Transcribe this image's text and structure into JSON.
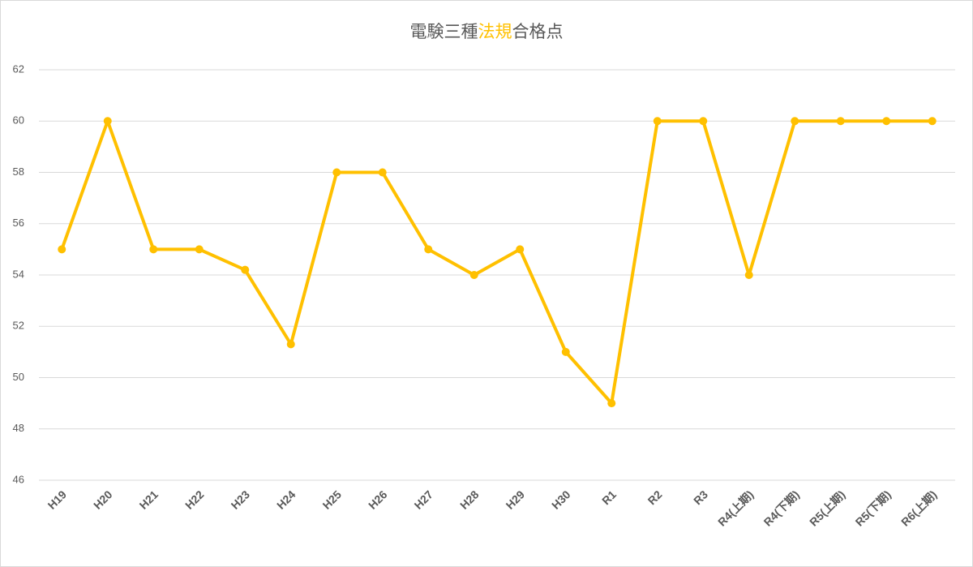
{
  "chart_data": {
    "type": "line",
    "title": [
      {
        "text": "電験三種"
      },
      {
        "text": "法規",
        "color": "#ffc000"
      },
      {
        "text": "合格点"
      }
    ],
    "categories": [
      "H19",
      "H20",
      "H21",
      "H22",
      "H23",
      "H24",
      "H25",
      "H26",
      "H27",
      "H28",
      "H29",
      "H30",
      "R1",
      "R2",
      "R3",
      "R4(上期)",
      "R4(下期)",
      "R5(上期)",
      "R5(下期)",
      "R6(上期)"
    ],
    "values": [
      55,
      60,
      55,
      55,
      54.2,
      51.3,
      58,
      58,
      55,
      54,
      55,
      51,
      49,
      60,
      60,
      54,
      60,
      60,
      60,
      60
    ],
    "color": "#ffc000",
    "ylim": [
      46,
      62
    ],
    "yticks": [
      46,
      48,
      50,
      52,
      54,
      56,
      58,
      60,
      62
    ],
    "grid": true
  }
}
